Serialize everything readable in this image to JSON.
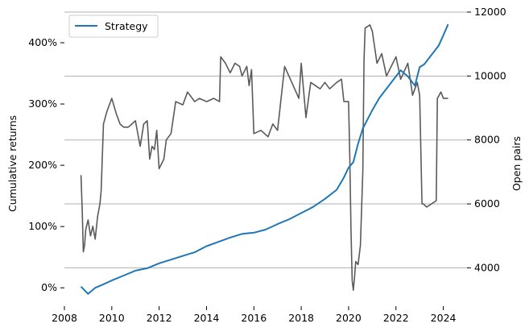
{
  "chart_data": {
    "type": "line",
    "x_axis": {
      "label": "",
      "range": [
        2008,
        2025
      ],
      "ticks": [
        2008,
        2010,
        2012,
        2014,
        2016,
        2018,
        2020,
        2022,
        2024
      ],
      "tick_labels": [
        "2008",
        "2010",
        "2012",
        "2014",
        "2016",
        "2018",
        "2020",
        "2022",
        "2024"
      ]
    },
    "y_left": {
      "label": "Cumulative returns",
      "range": [
        -30,
        450
      ],
      "ticks": [
        0,
        100,
        200,
        300,
        400
      ],
      "tick_labels": [
        "0%",
        "100%",
        "200%",
        "300%",
        "400%"
      ]
    },
    "y_right": {
      "label": "Open pairs",
      "range": [
        2800,
        12000
      ],
      "ticks": [
        4000,
        6000,
        8000,
        10000,
        12000
      ],
      "tick_labels": [
        "4000",
        "6000",
        "8000",
        "10000",
        "12000"
      ]
    },
    "grid": "horizontal, right-axis ticks",
    "legend": {
      "position": "top-left",
      "entries": [
        "Strategy"
      ]
    },
    "series": [
      {
        "name": "Strategy",
        "axis": "left",
        "color": "#1f77b4",
        "x": [
          2008.7,
          2009.0,
          2009.3,
          2009.6,
          2010.0,
          2010.5,
          2011.0,
          2011.5,
          2012.0,
          2012.5,
          2013.0,
          2013.5,
          2014.0,
          2014.5,
          2015.0,
          2015.5,
          2016.0,
          2016.5,
          2017.0,
          2017.5,
          2018.0,
          2018.5,
          2019.0,
          2019.5,
          2019.8,
          2020.0,
          2020.2,
          2020.4,
          2020.6,
          2020.8,
          2021.0,
          2021.3,
          2021.6,
          2021.9,
          2022.2,
          2022.5,
          2022.8,
          2023.0,
          2023.2,
          2023.4,
          2023.6,
          2023.8,
          2024.0,
          2024.2
        ],
        "y": [
          2,
          -10,
          0,
          5,
          12,
          20,
          28,
          32,
          40,
          46,
          52,
          58,
          68,
          75,
          82,
          88,
          90,
          95,
          104,
          112,
          122,
          132,
          145,
          160,
          180,
          196,
          205,
          235,
          260,
          275,
          290,
          310,
          325,
          340,
          355,
          345,
          330,
          360,
          365,
          375,
          385,
          395,
          412,
          430
        ]
      },
      {
        "name": "Open pairs",
        "axis": "right",
        "color": "#5a5a5a",
        "x": [
          2008.7,
          2008.75,
          2008.8,
          2008.85,
          2008.9,
          2009.0,
          2009.1,
          2009.2,
          2009.3,
          2009.4,
          2009.5,
          2009.55,
          2009.65,
          2009.8,
          2010.0,
          2010.2,
          2010.35,
          2010.5,
          2010.7,
          2011.0,
          2011.2,
          2011.35,
          2011.5,
          2011.6,
          2011.7,
          2011.8,
          2011.9,
          2012.0,
          2012.2,
          2012.3,
          2012.5,
          2012.7,
          2013.0,
          2013.2,
          2013.5,
          2013.7,
          2014.0,
          2014.3,
          2014.55,
          2014.6,
          2014.8,
          2015.0,
          2015.2,
          2015.4,
          2015.5,
          2015.7,
          2015.8,
          2015.9,
          2016.0,
          2016.3,
          2016.6,
          2016.8,
          2017.0,
          2017.3,
          2017.6,
          2017.9,
          2018.0,
          2018.2,
          2018.4,
          2018.6,
          2018.8,
          2019.0,
          2019.2,
          2019.5,
          2019.7,
          2019.8,
          2020.0,
          2020.05,
          2020.1,
          2020.15,
          2020.2,
          2020.25,
          2020.3,
          2020.4,
          2020.5,
          2020.6,
          2020.65,
          2020.7,
          2020.9,
          2021.0,
          2021.2,
          2021.4,
          2021.6,
          2021.8,
          2022.0,
          2022.2,
          2022.5,
          2022.7,
          2022.9,
          2023.0,
          2023.1,
          2023.15,
          2023.3,
          2023.5,
          2023.7,
          2023.75,
          2023.9,
          2024.0,
          2024.2
        ],
        "y": [
          6900,
          5800,
          4500,
          4700,
          5200,
          5500,
          5000,
          5300,
          4900,
          5600,
          6000,
          6400,
          8500,
          8900,
          9300,
          8800,
          8500,
          8400,
          8400,
          8600,
          7800,
          8500,
          8600,
          7400,
          7800,
          7700,
          8300,
          7100,
          7400,
          8000,
          8200,
          9200,
          9100,
          9500,
          9200,
          9300,
          9200,
          9300,
          9200,
          10600,
          10400,
          10100,
          10400,
          10300,
          10000,
          10300,
          9700,
          10200,
          8200,
          8300,
          8100,
          8500,
          8300,
          10300,
          9800,
          9300,
          10400,
          8700,
          9800,
          9700,
          9600,
          9800,
          9600,
          9800,
          9900,
          9200,
          9200,
          7500,
          5200,
          3600,
          3300,
          3700,
          4200,
          4100,
          4700,
          7000,
          10500,
          11500,
          11600,
          11400,
          10400,
          10700,
          10000,
          10300,
          10600,
          9900,
          10400,
          9400,
          9800,
          9400,
          6000,
          6000,
          5900,
          6000,
          6100,
          9300,
          9500,
          9300,
          9300
        ]
      }
    ]
  }
}
